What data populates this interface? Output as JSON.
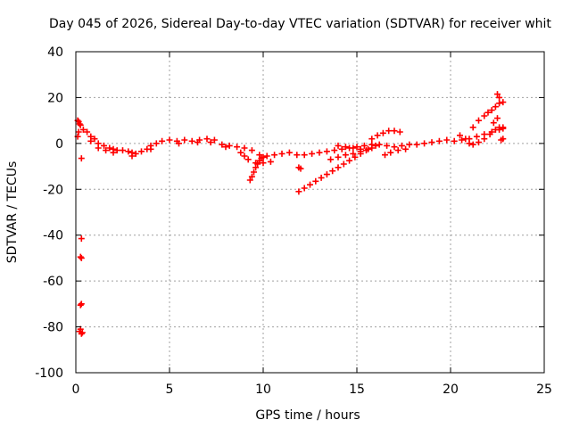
{
  "chart_data": {
    "type": "scatter",
    "title": "Day 045 of 2026, Sidereal Day-to-day VTEC variation (SDTVAR) for receiver whit",
    "xlabel": "GPS time / hours",
    "ylabel": "SDTVAR / TECUs",
    "xlim": [
      0,
      25
    ],
    "ylim": [
      -100,
      40
    ],
    "xticks": [
      0,
      5,
      10,
      15,
      20,
      25
    ],
    "xtick_labels": [
      "0",
      "5",
      "10",
      "15",
      "20",
      "25"
    ],
    "yticks": [
      -100,
      -80,
      -60,
      -40,
      -20,
      0,
      20,
      40
    ],
    "ytick_labels": [
      "-100",
      "-80",
      "-60",
      "-40",
      "-20",
      "0",
      "20",
      "40"
    ],
    "grid": true,
    "marker": "plus",
    "color": "#ff0000",
    "series": [
      {
        "points": [
          [
            0.1,
            10
          ],
          [
            0.15,
            9.5
          ],
          [
            0.2,
            8.5
          ],
          [
            0.25,
            8
          ],
          [
            0.15,
            5
          ],
          [
            0.1,
            3
          ],
          [
            0.3,
            -6.5
          ],
          [
            0.3,
            -41.5
          ],
          [
            0.25,
            -49.5
          ],
          [
            0.3,
            -50
          ],
          [
            0.25,
            -70.5
          ],
          [
            0.3,
            -70
          ],
          [
            0.2,
            -82
          ],
          [
            0.25,
            -81
          ],
          [
            0.3,
            -83
          ],
          [
            0.35,
            -82.5
          ],
          [
            0.4,
            6
          ],
          [
            0.6,
            5
          ],
          [
            0.8,
            3
          ],
          [
            1.0,
            2
          ],
          [
            1.2,
            0
          ],
          [
            1.5,
            -1
          ],
          [
            1.8,
            -2
          ],
          [
            2.0,
            -2.5
          ],
          [
            2.2,
            -3
          ],
          [
            2.5,
            -3
          ],
          [
            2.8,
            -3.5
          ],
          [
            3.0,
            -4
          ],
          [
            3.2,
            -4.5
          ],
          [
            3.5,
            -3.5
          ],
          [
            3.8,
            -2.5
          ],
          [
            4.0,
            -1
          ],
          [
            4.3,
            0
          ],
          [
            4.6,
            1
          ],
          [
            5.0,
            1.5
          ],
          [
            5.4,
            1
          ],
          [
            5.8,
            1.5
          ],
          [
            6.2,
            1
          ],
          [
            6.6,
            1.5
          ],
          [
            7.0,
            2
          ],
          [
            7.4,
            1.5
          ],
          [
            7.8,
            -0.5
          ],
          [
            8.2,
            -1
          ],
          [
            8.6,
            -1.5
          ],
          [
            9.0,
            -2
          ],
          [
            9.4,
            -3
          ],
          [
            9.8,
            -5
          ],
          [
            10.2,
            -5.5
          ],
          [
            10.6,
            -5
          ],
          [
            11.0,
            -4.5
          ],
          [
            11.4,
            -4
          ],
          [
            11.8,
            -5
          ],
          [
            12.2,
            -5
          ],
          [
            12.6,
            -4.5
          ],
          [
            13.0,
            -4
          ],
          [
            13.4,
            -3.5
          ],
          [
            13.8,
            -3
          ],
          [
            14.2,
            -2.5
          ],
          [
            14.6,
            -2
          ],
          [
            15.0,
            -1.5
          ],
          [
            15.4,
            -1
          ],
          [
            15.8,
            -0.5
          ],
          [
            16.2,
            -0.5
          ],
          [
            16.6,
            -1
          ],
          [
            17.0,
            -1.5
          ],
          [
            17.4,
            -1
          ],
          [
            17.8,
            -0.5
          ],
          [
            18.2,
            -0.5
          ],
          [
            18.6,
            0
          ],
          [
            19.0,
            0.5
          ],
          [
            19.4,
            1
          ],
          [
            19.8,
            1.5
          ],
          [
            20.2,
            1
          ],
          [
            20.6,
            1.5
          ],
          [
            21.0,
            2
          ],
          [
            21.4,
            3
          ],
          [
            21.8,
            4
          ],
          [
            22.2,
            5
          ],
          [
            22.6,
            6
          ],
          [
            22.8,
            7
          ],
          [
            0.8,
            1
          ],
          [
            1.2,
            -2
          ],
          [
            1.6,
            -3
          ],
          [
            2.0,
            -4
          ],
          [
            3.0,
            -5.5
          ],
          [
            4.0,
            -2.5
          ],
          [
            5.5,
            0
          ],
          [
            6.5,
            0.5
          ],
          [
            7.2,
            0.5
          ],
          [
            8.0,
            -1.5
          ],
          [
            9.3,
            -16
          ],
          [
            9.4,
            -14.5
          ],
          [
            9.5,
            -12.5
          ],
          [
            9.6,
            -10.5
          ],
          [
            9.7,
            -9
          ],
          [
            9.8,
            -7.5
          ],
          [
            9.9,
            -6.5
          ],
          [
            10.0,
            -6
          ],
          [
            8.8,
            -4
          ],
          [
            9.0,
            -5.5
          ],
          [
            9.2,
            -7
          ],
          [
            9.6,
            -8.5
          ],
          [
            10.0,
            -8.5
          ],
          [
            10.4,
            -8
          ],
          [
            11.9,
            -10.5
          ],
          [
            12.0,
            -11
          ],
          [
            11.9,
            -21
          ],
          [
            12.2,
            -19.5
          ],
          [
            12.5,
            -18
          ],
          [
            12.8,
            -16.5
          ],
          [
            13.1,
            -15
          ],
          [
            13.4,
            -13.5
          ],
          [
            13.7,
            -12
          ],
          [
            14.0,
            -10.5
          ],
          [
            14.3,
            -9
          ],
          [
            14.6,
            -7.5
          ],
          [
            14.9,
            -6
          ],
          [
            15.2,
            -4.5
          ],
          [
            15.5,
            -3
          ],
          [
            15.8,
            -2
          ],
          [
            16.0,
            -1
          ],
          [
            13.6,
            -7
          ],
          [
            14.0,
            -6
          ],
          [
            14.4,
            -5
          ],
          [
            14.8,
            -4.5
          ],
          [
            15.2,
            -3.5
          ],
          [
            15.6,
            -2.5
          ],
          [
            14.0,
            -1
          ],
          [
            14.4,
            -1.5
          ],
          [
            14.8,
            -2
          ],
          [
            15.2,
            -2.5
          ],
          [
            15.8,
            2
          ],
          [
            16.1,
            3.5
          ],
          [
            16.4,
            4.5
          ],
          [
            16.7,
            5.5
          ],
          [
            17.0,
            5.5
          ],
          [
            17.3,
            5
          ],
          [
            16.5,
            -5
          ],
          [
            16.8,
            -4
          ],
          [
            17.2,
            -3
          ],
          [
            17.6,
            -2.5
          ],
          [
            20.5,
            3.5
          ],
          [
            20.8,
            2
          ],
          [
            21.0,
            0
          ],
          [
            21.2,
            -0.5
          ],
          [
            21.5,
            0.5
          ],
          [
            21.8,
            2
          ],
          [
            22.1,
            4
          ],
          [
            22.4,
            6
          ],
          [
            22.6,
            7
          ],
          [
            22.8,
            6.5
          ],
          [
            21.2,
            7
          ],
          [
            21.5,
            10
          ],
          [
            21.8,
            12
          ],
          [
            22.0,
            13.5
          ],
          [
            22.2,
            14.5
          ],
          [
            22.4,
            16
          ],
          [
            22.6,
            17.5
          ],
          [
            22.8,
            18
          ],
          [
            22.5,
            21.5
          ],
          [
            22.6,
            20
          ],
          [
            22.8,
            2
          ],
          [
            22.7,
            1.5
          ],
          [
            22.3,
            9
          ],
          [
            22.5,
            11
          ]
        ]
      }
    ]
  }
}
